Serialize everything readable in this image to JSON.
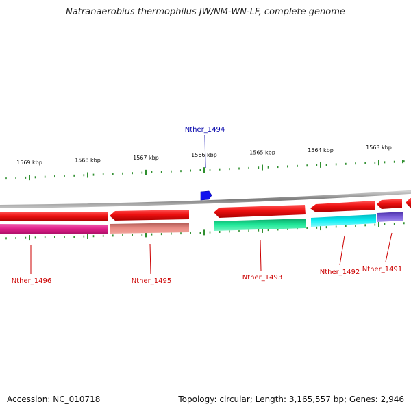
{
  "title": "Natranaerobius thermophilus JW/NM-WN-LF, complete genome",
  "footer": {
    "accession": "Accession: NC_010718",
    "summary": "Topology: circular; Length: 3,165,557 bp; Genes: 2,946"
  },
  "ruler_labels": [
    "1569 kbp",
    "1568 kbp",
    "1567 kbp",
    "1566 kbp",
    "1565 kbp",
    "1564 kbp",
    "1563 kbp"
  ],
  "genes": [
    {
      "id": "Nther_1496",
      "color": "#cc0000"
    },
    {
      "id": "Nther_1495",
      "color": "#cc0000"
    },
    {
      "id": "Nther_1494",
      "color": "#0000aa"
    },
    {
      "id": "Nther_1493",
      "color": "#cc0000"
    },
    {
      "id": "Nther_1492",
      "color": "#cc0000"
    },
    {
      "id": "Nther_1491",
      "color": "#cc0000"
    }
  ],
  "colors": {
    "backbone": "#8a8a8a",
    "tick": "#2f8f2f",
    "cds": "#ee1111",
    "small_gene": "#1111ee",
    "track_magenta": "#e0208a",
    "track_salmon": "#e07a72",
    "track_green": "#10d88a",
    "track_cyan": "#00e8ee",
    "track_purple": "#6a4ec8"
  }
}
